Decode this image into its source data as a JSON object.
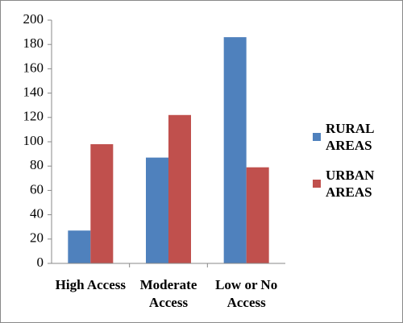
{
  "chart_data": {
    "type": "bar",
    "categories": [
      "High Access",
      "Moderate Access",
      "Low or No Access"
    ],
    "series": [
      {
        "name": "RURAL AREAS",
        "color": "#4f81bd",
        "values": [
          27,
          87,
          186
        ]
      },
      {
        "name": "URBAN AREAS",
        "color": "#c0504d",
        "values": [
          98,
          122,
          79
        ]
      }
    ],
    "ylim": [
      0,
      200
    ],
    "yticks": [
      0,
      20,
      40,
      60,
      80,
      100,
      120,
      140,
      160,
      180,
      200
    ],
    "grid": false,
    "legend": "right"
  }
}
